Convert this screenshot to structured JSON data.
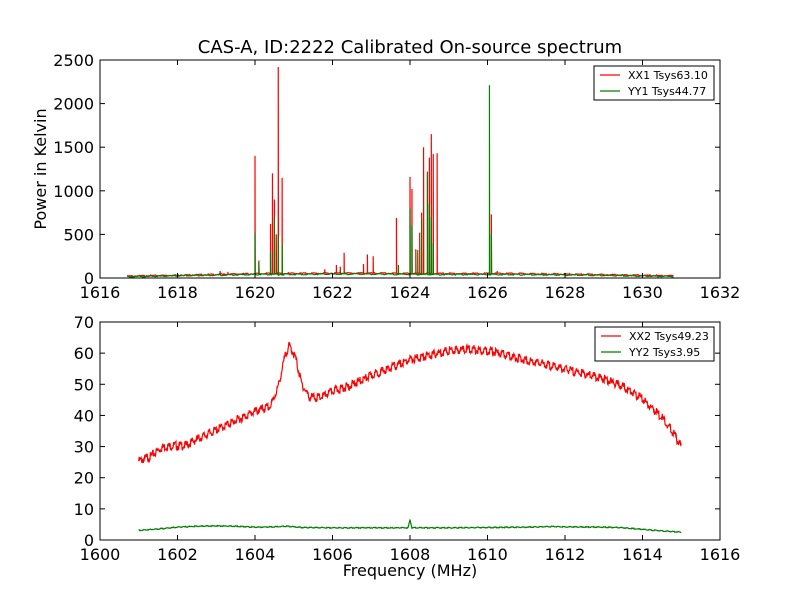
{
  "chart_data": [
    {
      "type": "line",
      "title": "CAS-A, ID:2222 Calibrated On-source spectrum",
      "xlabel": "",
      "ylabel": "Power in Kelvin",
      "xlim": [
        1616,
        1632
      ],
      "ylim": [
        0,
        2500
      ],
      "xticks": [
        "1616",
        "1618",
        "1620",
        "1622",
        "1624",
        "1626",
        "1628",
        "1630",
        "1632"
      ],
      "yticks": [
        "0",
        "500",
        "1000",
        "1500",
        "2000",
        "2500"
      ],
      "grid": false,
      "legend_position": "top-right",
      "series": [
        {
          "name": "XX1 Tsys63.10",
          "color": "#ff0000",
          "baseline": [
            [
              1616.7,
              25
            ],
            [
              1618.5,
              40
            ],
            [
              1620.2,
              55
            ],
            [
              1622.5,
              60
            ],
            [
              1624.5,
              55
            ],
            [
              1626.5,
              55
            ],
            [
              1628.5,
              45
            ],
            [
              1630.8,
              28
            ]
          ],
          "spikes": [
            [
              1619.1,
              80
            ],
            [
              1619.3,
              70
            ],
            [
              1620.0,
              1400
            ],
            [
              1620.1,
              200
            ],
            [
              1620.4,
              620
            ],
            [
              1620.45,
              1200
            ],
            [
              1620.5,
              900
            ],
            [
              1620.55,
              500
            ],
            [
              1620.6,
              2420
            ],
            [
              1620.7,
              1150
            ],
            [
              1621.8,
              100
            ],
            [
              1622.1,
              150
            ],
            [
              1622.2,
              130
            ],
            [
              1622.3,
              290
            ],
            [
              1622.8,
              160
            ],
            [
              1622.9,
              270
            ],
            [
              1623.05,
              250
            ],
            [
              1623.65,
              690
            ],
            [
              1624.0,
              1160
            ],
            [
              1624.05,
              1020
            ],
            [
              1624.15,
              330
            ],
            [
              1624.25,
              520
            ],
            [
              1624.3,
              750
            ],
            [
              1624.35,
              1500
            ],
            [
              1624.45,
              1220
            ],
            [
              1624.5,
              1380
            ],
            [
              1624.55,
              1650
            ],
            [
              1624.6,
              1420
            ],
            [
              1624.7,
              1430
            ],
            [
              1626.1,
              730
            ],
            [
              1626.25,
              80
            ]
          ]
        },
        {
          "name": "YY1 Tsys44.77",
          "color": "#008000",
          "baseline": [
            [
              1616.7,
              20
            ],
            [
              1618.5,
              35
            ],
            [
              1620.2,
              45
            ],
            [
              1622.5,
              50
            ],
            [
              1624.5,
              45
            ],
            [
              1626.5,
              45
            ],
            [
              1628.5,
              38
            ],
            [
              1630.8,
              22
            ]
          ],
          "spikes": [
            [
              1620.0,
              520
            ],
            [
              1620.1,
              180
            ],
            [
              1620.4,
              300
            ],
            [
              1620.5,
              700
            ],
            [
              1620.6,
              480
            ],
            [
              1620.7,
              380
            ],
            [
              1622.2,
              90
            ],
            [
              1623.7,
              150
            ],
            [
              1624.0,
              800
            ],
            [
              1624.05,
              600
            ],
            [
              1624.2,
              320
            ],
            [
              1624.3,
              680
            ],
            [
              1624.45,
              1200
            ],
            [
              1624.5,
              850
            ],
            [
              1624.55,
              700
            ],
            [
              1624.6,
              400
            ],
            [
              1626.05,
              2210
            ],
            [
              1626.1,
              500
            ]
          ]
        }
      ]
    },
    {
      "type": "line",
      "title": "",
      "xlabel": "Frequency (MHz)",
      "ylabel": "",
      "xlim": [
        1600,
        1616
      ],
      "ylim": [
        0,
        70
      ],
      "xticks": [
        "1600",
        "1602",
        "1604",
        "1606",
        "1608",
        "1610",
        "1612",
        "1614",
        "1616"
      ],
      "yticks": [
        "0",
        "10",
        "20",
        "30",
        "40",
        "50",
        "60",
        "70"
      ],
      "grid": false,
      "legend_position": "top-right",
      "series": [
        {
          "name": "XX2 Tsys49.23",
          "color": "#ff0000",
          "points": [
            [
              1601.0,
              26
            ],
            [
              1601.3,
              27.5
            ],
            [
              1601.6,
              30.5
            ],
            [
              1601.9,
              31
            ],
            [
              1602.2,
              31
            ],
            [
              1602.5,
              33
            ],
            [
              1603.0,
              36
            ],
            [
              1603.5,
              39
            ],
            [
              1604.0,
              42
            ],
            [
              1604.4,
              43.5
            ],
            [
              1604.6,
              50
            ],
            [
              1604.8,
              61
            ],
            [
              1604.9,
              63
            ],
            [
              1605.05,
              59
            ],
            [
              1605.2,
              51
            ],
            [
              1605.4,
              46.5
            ],
            [
              1605.7,
              46.5
            ],
            [
              1606.0,
              48.5
            ],
            [
              1606.5,
              50.5
            ],
            [
              1607.0,
              53.5
            ],
            [
              1607.5,
              56
            ],
            [
              1608.0,
              58.5
            ],
            [
              1608.5,
              60
            ],
            [
              1609.0,
              61.5
            ],
            [
              1609.5,
              62
            ],
            [
              1610.0,
              61.5
            ],
            [
              1610.5,
              60
            ],
            [
              1611.0,
              58.5
            ],
            [
              1611.5,
              57
            ],
            [
              1612.0,
              55.5
            ],
            [
              1612.5,
              54
            ],
            [
              1613.0,
              52.5
            ],
            [
              1613.5,
              50
            ],
            [
              1614.0,
              46
            ],
            [
              1614.5,
              40
            ],
            [
              1614.8,
              35
            ],
            [
              1615.0,
              30.5
            ]
          ]
        },
        {
          "name": "YY2 Tsys3.95",
          "color": "#008000",
          "points": [
            [
              1601.0,
              3.2
            ],
            [
              1601.5,
              3.6
            ],
            [
              1602.0,
              4.2
            ],
            [
              1602.5,
              4.5
            ],
            [
              1603.0,
              4.6
            ],
            [
              1603.5,
              4.5
            ],
            [
              1604.0,
              4.2
            ],
            [
              1604.5,
              4.3
            ],
            [
              1604.8,
              4.5
            ],
            [
              1605.2,
              4.1
            ],
            [
              1606.0,
              4.0
            ],
            [
              1607.0,
              4.0
            ],
            [
              1607.95,
              4.0
            ],
            [
              1608.0,
              6.5
            ],
            [
              1608.05,
              4.0
            ],
            [
              1609.0,
              4.0
            ],
            [
              1610.0,
              4.1
            ],
            [
              1611.0,
              4.2
            ],
            [
              1611.7,
              4.4
            ],
            [
              1612.0,
              4.3
            ],
            [
              1613.0,
              4.2
            ],
            [
              1613.5,
              4.0
            ],
            [
              1614.0,
              3.5
            ],
            [
              1614.5,
              3.0
            ],
            [
              1615.0,
              2.6
            ]
          ]
        }
      ]
    }
  ]
}
